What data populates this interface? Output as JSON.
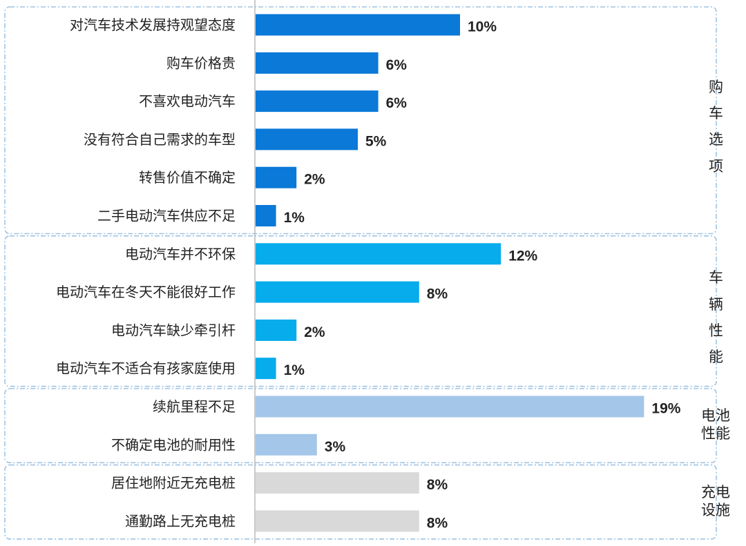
{
  "chart_data": {
    "type": "bar",
    "orientation": "horizontal",
    "value_suffix": "%",
    "groups": [
      {
        "label": "购车选项",
        "color": "#0a79d8",
        "items": [
          {
            "category": "对汽车技术发展持观望态度",
            "value": 10,
            "label": "10%"
          },
          {
            "category": "购车价格贵",
            "value": 6,
            "label": "6%"
          },
          {
            "category": "不喜欢电动汽车",
            "value": 6,
            "label": "6%"
          },
          {
            "category": "没有符合自己需求的车型",
            "value": 5,
            "label": "5%"
          },
          {
            "category": "转售价值不确定",
            "value": 2,
            "label": "2%"
          },
          {
            "category": "二手电动汽车供应不足",
            "value": 1,
            "label": "1%"
          }
        ]
      },
      {
        "label": "车辆性能",
        "color": "#07acec",
        "items": [
          {
            "category": "电动汽车并不环保",
            "value": 12,
            "label": "12%"
          },
          {
            "category": "电动汽车在冬天不能很好工作",
            "value": 8,
            "label": "8%"
          },
          {
            "category": "电动汽车缺少牵引杆",
            "value": 2,
            "label": "2%"
          },
          {
            "category": "电动汽车不适合有孩家庭使用",
            "value": 1,
            "label": "1%"
          }
        ]
      },
      {
        "label": "电池性能",
        "color": "#a3c6e9",
        "items": [
          {
            "category": "续航里程不足",
            "value": 19,
            "label": "19%"
          },
          {
            "category": "不确定电池的耐用性",
            "value": 3,
            "label": "3%"
          }
        ]
      },
      {
        "label": "充电设施",
        "color": "#d9d9d9",
        "items": [
          {
            "category": "居住地附近无充电桩",
            "value": 8,
            "label": "8%"
          },
          {
            "category": "通勤路上无充电桩",
            "value": 8,
            "label": "8%"
          }
        ]
      }
    ],
    "xlim": [
      0,
      19
    ],
    "grid": false,
    "legend": "none"
  }
}
